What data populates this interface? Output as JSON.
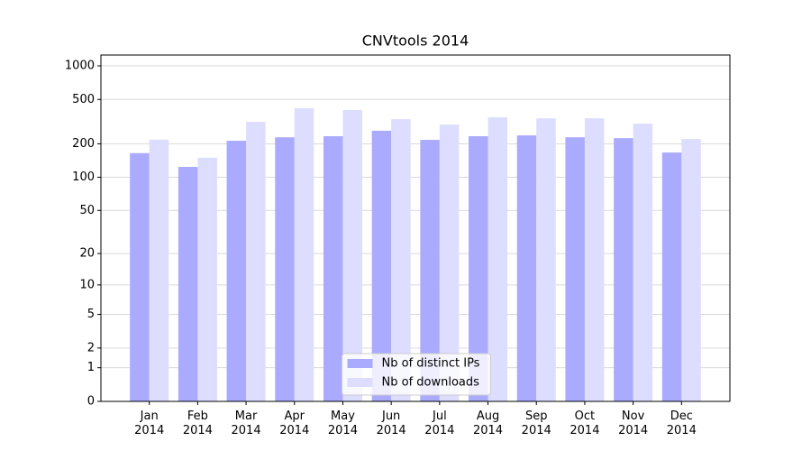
{
  "chart_data": {
    "type": "bar",
    "title": "CNVtools 2014",
    "categories": [
      "Jan 2014",
      "Feb 2014",
      "Mar 2014",
      "Apr 2014",
      "May 2014",
      "Jun 2014",
      "Jul 2014",
      "Aug 2014",
      "Sep 2014",
      "Oct 2014",
      "Nov 2014",
      "Dec 2014"
    ],
    "series": [
      {
        "name": "Nb of distinct IPs",
        "color": "#aaaaff",
        "values": [
          165,
          124,
          213,
          229,
          234,
          262,
          217,
          234,
          238,
          229,
          225,
          167
        ]
      },
      {
        "name": "Nb of downloads",
        "color": "#ddddff",
        "values": [
          218,
          150,
          315,
          417,
          402,
          333,
          298,
          346,
          339,
          339,
          304,
          221
        ]
      }
    ],
    "yscale": "log1p",
    "ylim": [
      0,
      1250
    ],
    "yticks": [
      0,
      1,
      2,
      5,
      10,
      20,
      50,
      100,
      200,
      500,
      1000
    ],
    "grid": true,
    "legend": "lower center"
  }
}
